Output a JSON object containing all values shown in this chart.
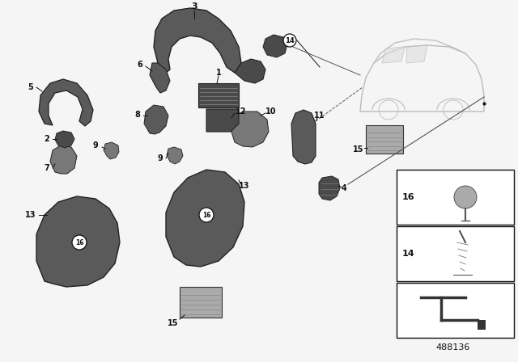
{
  "bg_color": "#f5f5f5",
  "part_number": "488136",
  "dark_gray": "#5a5a5a",
  "mid_gray": "#787878",
  "light_gray": "#aaaaaa",
  "black": "#111111",
  "white": "#ffffff",
  "car_gray": "#bbbbbb"
}
